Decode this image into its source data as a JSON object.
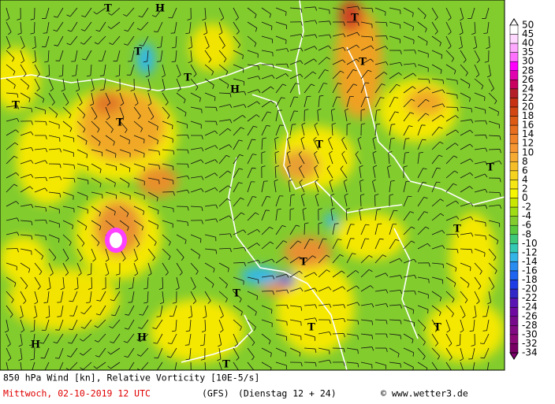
{
  "map": {
    "caption": {
      "title": "850 hPa Wind [kn], Relative Vorticity [10E-5/s]",
      "date": "Mittwoch, 02-10-2019  12 UTC",
      "model": "(GFS)",
      "run": "(Dienstag 12 + 24)",
      "credit": "© www.wetter3.de"
    },
    "legend": {
      "labels": [
        50,
        45,
        40,
        35,
        30,
        28,
        26,
        24,
        22,
        20,
        18,
        16,
        14,
        12,
        10,
        8,
        6,
        4,
        2,
        0,
        -2,
        -4,
        -6,
        -8,
        -10,
        -12,
        -14,
        -16,
        -18,
        -20,
        -22,
        -24,
        -26,
        -28,
        -30,
        -32,
        -34
      ]
    },
    "pressure_centers": [
      "T",
      "H",
      "T",
      "T",
      "H",
      "T",
      "T",
      "T",
      "T",
      "T",
      "T",
      "T",
      "T",
      "T",
      "T",
      "T",
      "T",
      "T",
      "H",
      "H"
    ]
  }
}
